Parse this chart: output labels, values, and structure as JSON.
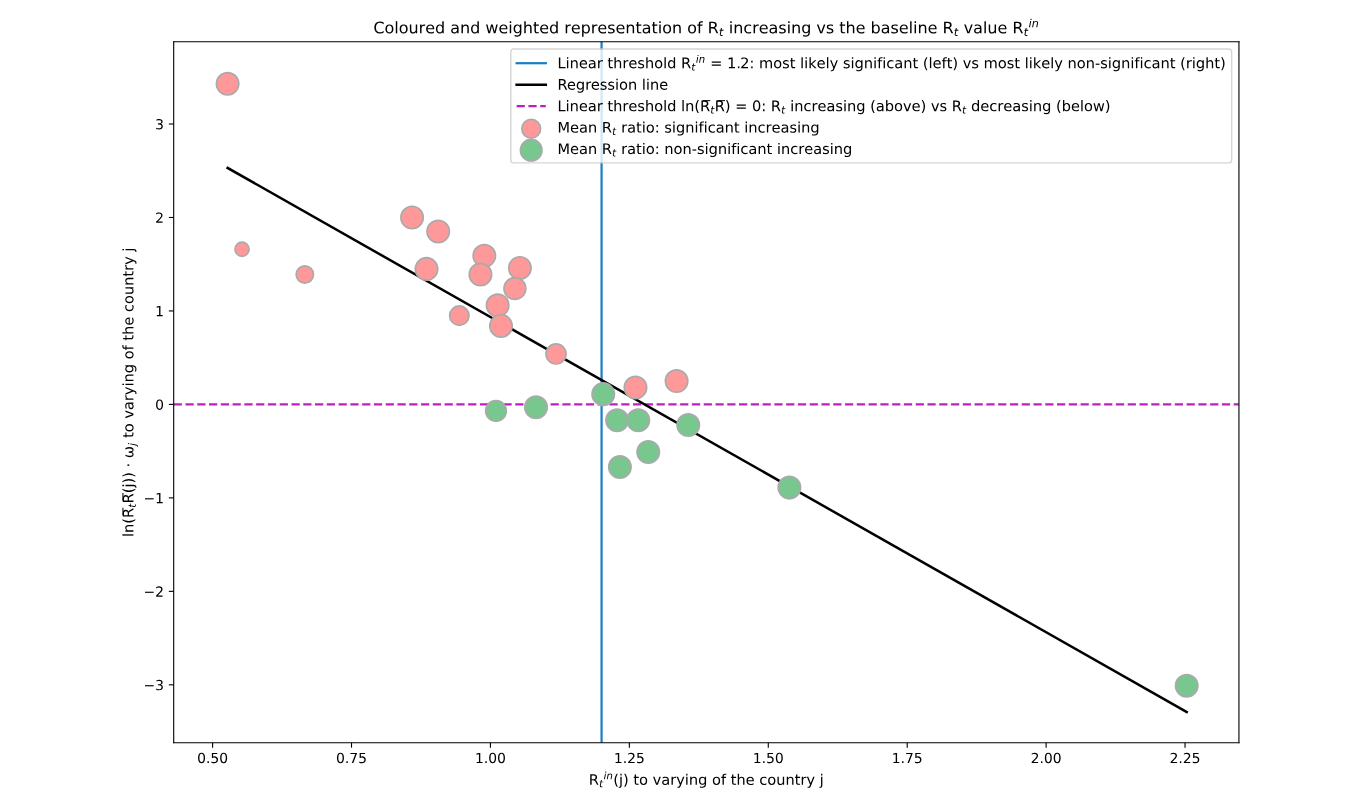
{
  "chart_data": {
    "type": "scatter",
    "title": "Coloured and weighted representation of R$_{t}$ increasing vs the baseline R$_{t}$ value R$_{t}$$^{in}$",
    "xlabel": "R$_{t}$$^{in}$(j) to varying of the country j",
    "ylabel": "ln(R̅$_{t}$R̅(j)) · ω$_{j}$ to varying of the country j",
    "xlim": [
      0.43,
      2.347
    ],
    "ylim": [
      -3.62,
      3.88
    ],
    "xticks": [
      {
        "value": 0.5,
        "label": "0.50"
      },
      {
        "value": 0.75,
        "label": "0.75"
      },
      {
        "value": 1.0,
        "label": "1.00"
      },
      {
        "value": 1.25,
        "label": "1.25"
      },
      {
        "value": 1.5,
        "label": "1.50"
      },
      {
        "value": 1.75,
        "label": "1.75"
      },
      {
        "value": 2.0,
        "label": "2.00"
      },
      {
        "value": 2.25,
        "label": "2.25"
      }
    ],
    "yticks": [
      -3,
      -2,
      -1,
      0,
      1,
      2,
      3
    ],
    "grid": false,
    "legend": "top right",
    "ref_lines": [
      {
        "axis": "x",
        "value": 1.2,
        "label": "Linear threshold R$_{t}$$^{in}$ = 1.2: most likely significant (left) vs most likely non-significant (right)",
        "color": "#1a7fc1",
        "line_style": "solid"
      },
      {
        "axis": "y",
        "value": 0,
        "label": "Linear threshold ln(R̅$_{t}$R̅) = 0: R$_{t}$ increasing (above) vs R$_{t}$ decreasing (below)",
        "color": "#c01fc0",
        "line_style": "dashed"
      }
    ],
    "series": [
      {
        "type": "line",
        "marker": "none",
        "name": "Regression line",
        "color": "#000000",
        "x": [
          0.527,
          2.253
        ],
        "values": [
          2.53,
          -3.29
        ]
      },
      {
        "marker": "circle",
        "name": "Mean R$_{t}$ ratio: significant increasing",
        "color": "#ff9999",
        "x": [
          0.527,
          0.553,
          0.666,
          0.859,
          0.906,
          0.885,
          0.944,
          0.989,
          0.982,
          1.053,
          1.044,
          1.013,
          1.019,
          1.118,
          1.261,
          1.335
        ],
        "values": [
          3.43,
          1.66,
          1.39,
          2.0,
          1.85,
          1.45,
          0.95,
          1.59,
          1.39,
          1.46,
          1.24,
          1.06,
          0.84,
          0.54,
          0.18,
          0.25
        ],
        "sizes": [
          1,
          0.4,
          0.6,
          1,
          1,
          1,
          0.75,
          1,
          1,
          1,
          0.95,
          1,
          1,
          0.8,
          1,
          1
        ]
      },
      {
        "marker": "circle",
        "name": "Mean R$_{t}$ ratio: non-significant increasing",
        "color": "#77c78f",
        "x": [
          1.01,
          1.082,
          1.203,
          1.228,
          1.266,
          1.233,
          1.284,
          1.356,
          1.538,
          2.253
        ],
        "values": [
          -0.07,
          -0.03,
          0.11,
          -0.17,
          -0.17,
          -0.67,
          -0.51,
          -0.22,
          -0.89,
          -3.01
        ],
        "sizes": [
          0.85,
          1,
          1,
          1,
          1,
          1,
          1,
          1,
          1,
          1
        ]
      }
    ]
  }
}
